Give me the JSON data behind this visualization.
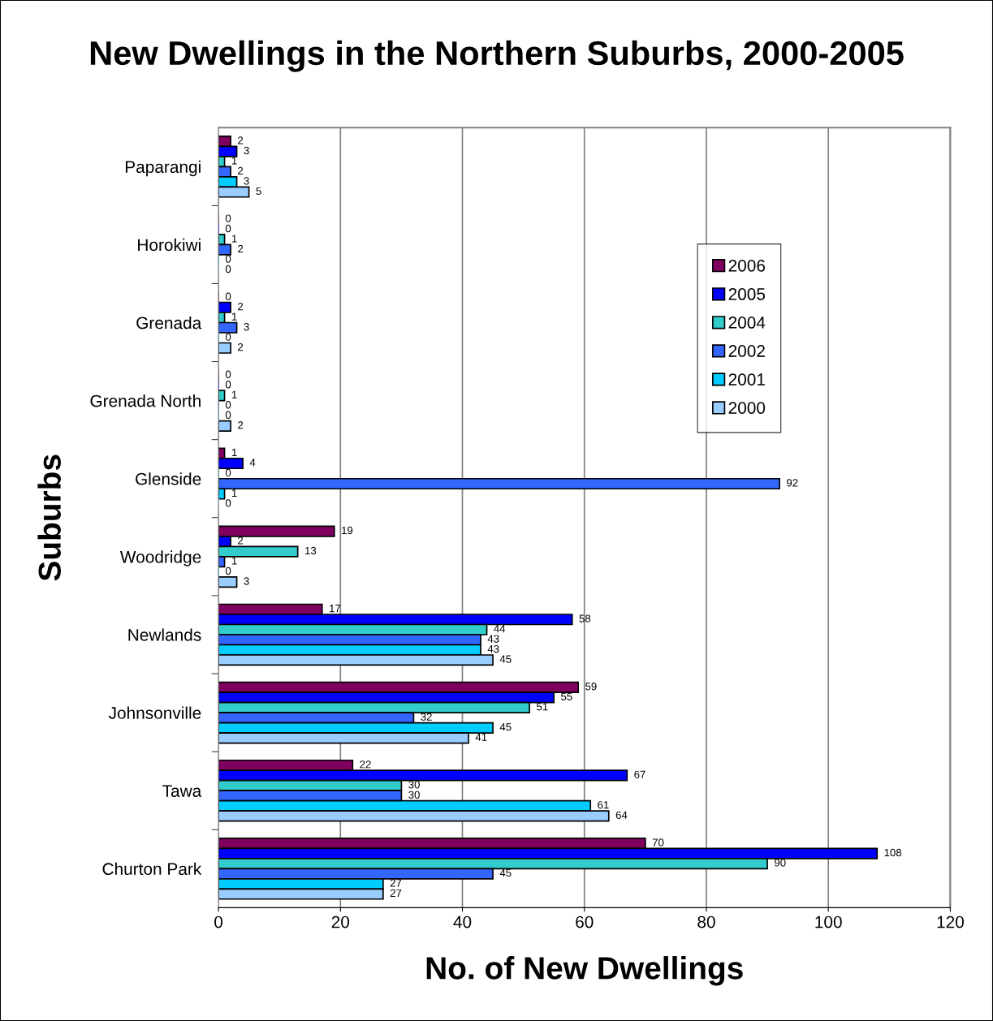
{
  "chart_data": {
    "type": "bar",
    "orientation": "horizontal",
    "title": "New Dwellings in the Northern Suburbs, 2000-2005",
    "xlabel": "No. of New Dwellings",
    "ylabel": "Suburbs",
    "categories": [
      "Paparangi",
      "Horokiwi",
      "Grenada",
      "Grenada North",
      "Glenside",
      "Woodridge",
      "Newlands",
      "Johnsonville",
      "Tawa",
      "Churton Park"
    ],
    "series": [
      {
        "name": "2006",
        "color": "#800060",
        "values": [
          2,
          0,
          0,
          0,
          1,
          19,
          17,
          59,
          22,
          70
        ]
      },
      {
        "name": "2005",
        "color": "#0000ff",
        "values": [
          3,
          0,
          2,
          0,
          4,
          2,
          58,
          55,
          67,
          108
        ]
      },
      {
        "name": "2004",
        "color": "#33cccc",
        "values": [
          1,
          1,
          1,
          1,
          0,
          13,
          44,
          51,
          30,
          90
        ]
      },
      {
        "name": "2002",
        "color": "#3366ff",
        "values": [
          2,
          2,
          3,
          0,
          92,
          1,
          43,
          32,
          30,
          45
        ]
      },
      {
        "name": "2001",
        "color": "#00ccff",
        "values": [
          3,
          0,
          0,
          0,
          1,
          0,
          43,
          45,
          61,
          27
        ]
      },
      {
        "name": "2000",
        "color": "#99ccff",
        "values": [
          5,
          0,
          2,
          2,
          0,
          3,
          45,
          41,
          64,
          27
        ]
      }
    ],
    "xlim": [
      0,
      120
    ],
    "xticks": [
      0,
      20,
      40,
      60,
      80,
      100,
      120
    ],
    "grid": "x",
    "legend": "right",
    "data_labels": true
  }
}
